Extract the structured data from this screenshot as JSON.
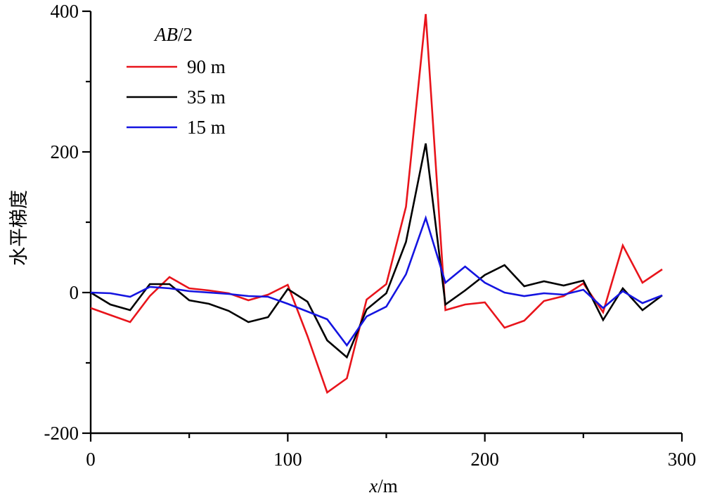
{
  "chart_data": {
    "type": "line",
    "xlabel_italic": "x",
    "xlabel_unit": "/m",
    "ylabel": "水平梯度",
    "xlim": [
      0,
      300
    ],
    "ylim": [
      -200,
      400
    ],
    "xticks": [
      0,
      100,
      200,
      300
    ],
    "yticks": [
      -200,
      0,
      200,
      400
    ],
    "grid": false,
    "legend": {
      "placement": "top-left",
      "title_italic": "AB",
      "title_suffix": "/2"
    },
    "x": [
      0,
      10,
      20,
      30,
      40,
      50,
      60,
      70,
      80,
      90,
      100,
      110,
      120,
      130,
      140,
      150,
      160,
      170,
      180,
      190,
      200,
      210,
      220,
      230,
      240,
      250,
      260,
      270,
      280,
      290
    ],
    "series": [
      {
        "name": "90 m",
        "color": "#e8141b",
        "values": [
          -22,
          -32,
          -42,
          -5,
          22,
          6,
          3,
          -1,
          -11,
          -3,
          11,
          -62,
          -142,
          -122,
          -10,
          12,
          122,
          396,
          -25,
          -17,
          -14,
          -50,
          -40,
          -12,
          -5,
          13,
          -28,
          67,
          14,
          33
        ]
      },
      {
        "name": "35 m",
        "color": "#000000",
        "values": [
          0,
          -17,
          -25,
          12,
          12,
          -11,
          -16,
          -26,
          -42,
          -35,
          5,
          -13,
          -68,
          -92,
          -24,
          -1,
          72,
          212,
          -17,
          3,
          25,
          39,
          9,
          16,
          10,
          17,
          -39,
          6,
          -25,
          -4
        ]
      },
      {
        "name": "15 m",
        "color": "#1414e0",
        "values": [
          0,
          -1,
          -6,
          8,
          6,
          2,
          0,
          -2,
          -5,
          -6,
          -16,
          -27,
          -38,
          -75,
          -34,
          -20,
          26,
          106,
          14,
          37,
          14,
          0,
          -5,
          -1,
          -3,
          4,
          -22,
          2,
          -15,
          -4
        ]
      }
    ]
  }
}
